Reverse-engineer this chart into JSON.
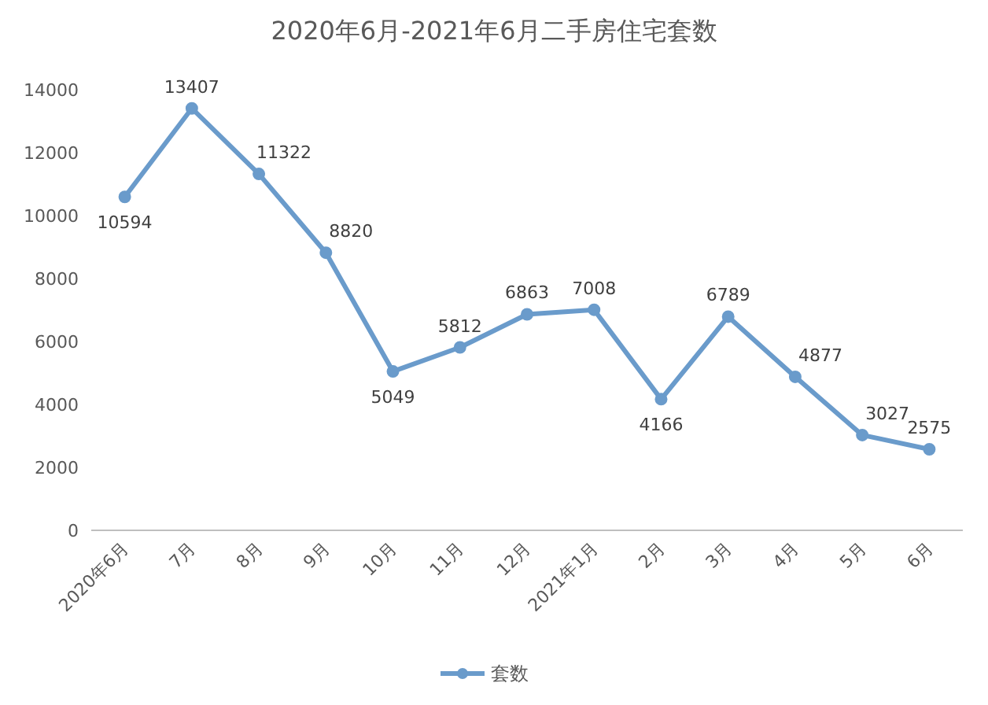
{
  "chart_data": {
    "type": "line",
    "title": "2020年6月-2021年6月二手房住宅套数",
    "categories": [
      "2020年6月",
      "7月",
      "8月",
      "9月",
      "10月",
      "11月",
      "12月",
      "2021年1月",
      "2月",
      "3月",
      "4月",
      "5月",
      "6月"
    ],
    "series": [
      {
        "name": "套数",
        "color": "#6a9bcb",
        "values": [
          10594,
          13407,
          11322,
          8820,
          5049,
          5812,
          6863,
          7008,
          4166,
          6789,
          4877,
          3027,
          2575
        ]
      }
    ],
    "ylim": [
      0,
      14000
    ],
    "yticks": [
      0,
      2000,
      4000,
      6000,
      8000,
      10000,
      12000,
      14000
    ],
    "data_labels": true,
    "legend": "bottom",
    "marker": "circle"
  }
}
